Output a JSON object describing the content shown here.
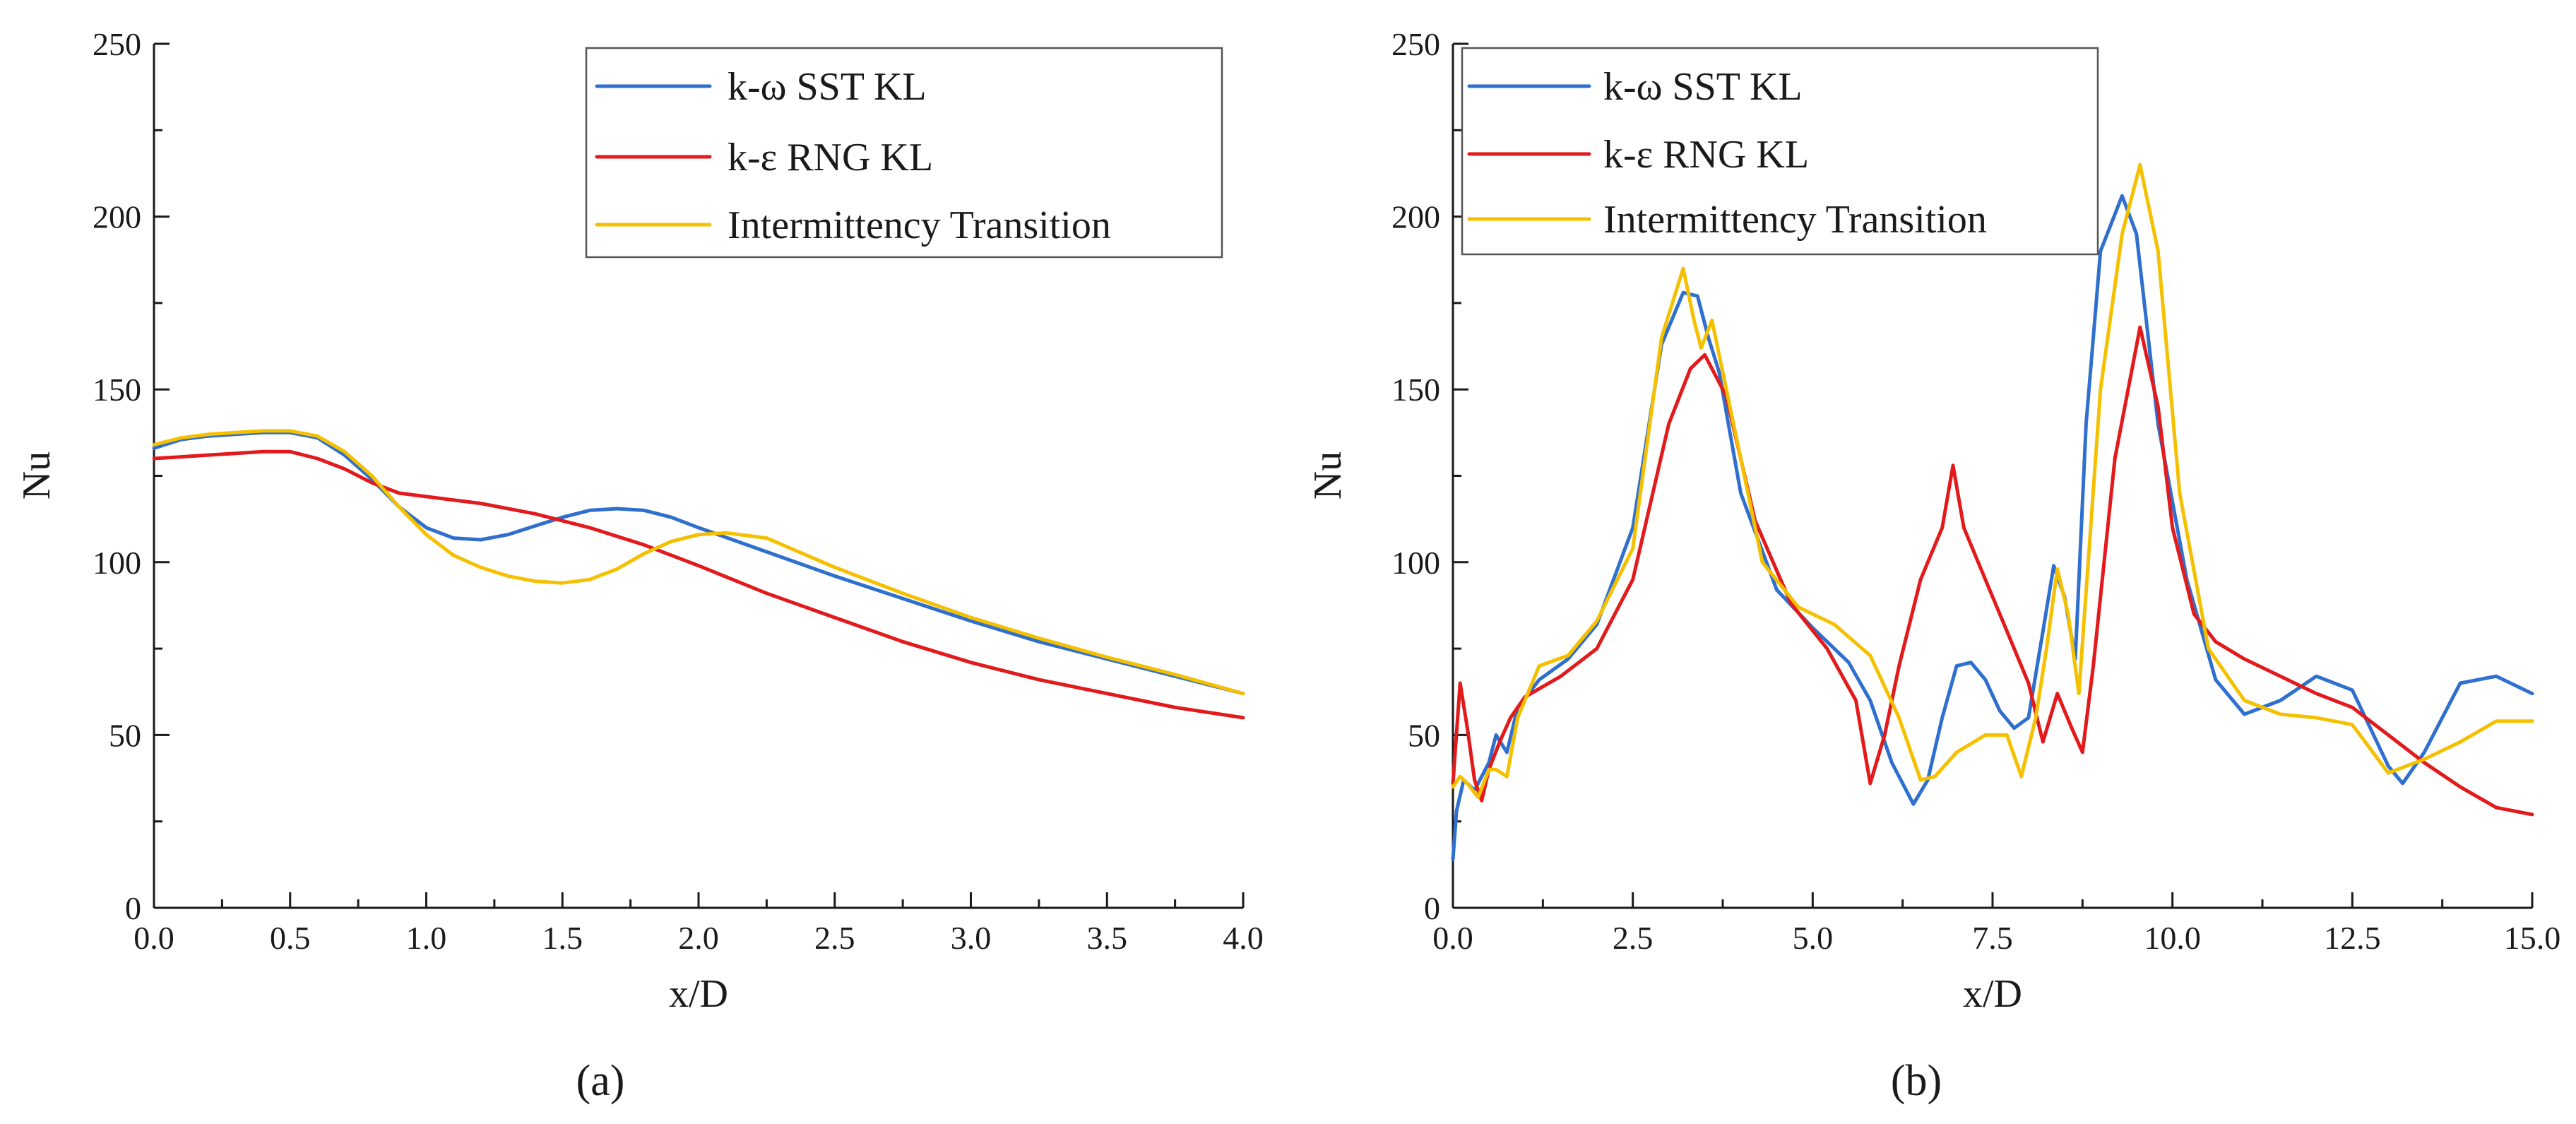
{
  "chart_data": [
    {
      "type": "line",
      "panel_label": "(a)",
      "xlabel": "x/D",
      "ylabel": "Nu",
      "xlim": [
        0,
        4
      ],
      "ylim": [
        0,
        250
      ],
      "x_ticks": [
        "0.0",
        "0.5",
        "1.0",
        "1.5",
        "2.0",
        "2.5",
        "3.0",
        "3.5",
        "4.0"
      ],
      "y_ticks": [
        "0",
        "50",
        "100",
        "150",
        "200",
        "250"
      ],
      "legend_position": "top-right",
      "series": [
        {
          "name": "k-ω SST KL",
          "color": "#2f6fce",
          "x": [
            0,
            0.1,
            0.2,
            0.3,
            0.4,
            0.5,
            0.6,
            0.7,
            0.8,
            0.9,
            1.0,
            1.1,
            1.2,
            1.3,
            1.4,
            1.5,
            1.6,
            1.7,
            1.8,
            1.9,
            2.0,
            2.25,
            2.5,
            2.75,
            3.0,
            3.25,
            3.5,
            3.75,
            4.0
          ],
          "y": [
            133,
            135.5,
            136.5,
            137,
            137.5,
            137.5,
            136,
            131,
            124,
            116,
            110,
            107,
            106.5,
            108,
            110.5,
            113,
            115,
            115.5,
            115,
            113,
            110,
            103,
            96,
            89.5,
            83,
            77,
            72,
            67,
            62
          ]
        },
        {
          "name": "k-ε RNG KL",
          "color": "#e31a1c",
          "x": [
            0,
            0.1,
            0.2,
            0.3,
            0.4,
            0.5,
            0.6,
            0.7,
            0.8,
            0.9,
            1.0,
            1.2,
            1.4,
            1.6,
            1.8,
            2.0,
            2.25,
            2.5,
            2.75,
            3.0,
            3.25,
            3.5,
            3.75,
            4.0
          ],
          "y": [
            130,
            130.5,
            131,
            131.5,
            132,
            132,
            130,
            127,
            123,
            120,
            119,
            117,
            114,
            110,
            105,
            99,
            91,
            84,
            77,
            71,
            66,
            62,
            58,
            55
          ]
        },
        {
          "name": "Intermittency Transition",
          "color": "#f5c000",
          "x": [
            0,
            0.1,
            0.2,
            0.3,
            0.4,
            0.5,
            0.6,
            0.7,
            0.8,
            0.9,
            1.0,
            1.1,
            1.2,
            1.3,
            1.4,
            1.5,
            1.6,
            1.7,
            1.8,
            1.9,
            2.0,
            2.1,
            2.25,
            2.5,
            2.75,
            3.0,
            3.25,
            3.5,
            3.75,
            4.0
          ],
          "y": [
            134,
            136,
            137,
            137.5,
            138,
            138,
            136.5,
            132,
            125,
            116,
            108,
            102,
            98.5,
            96,
            94.5,
            94,
            95,
            98,
            102.5,
            106,
            108,
            108.5,
            107,
            98.5,
            91,
            84,
            78,
            72.5,
            67.5,
            62
          ]
        }
      ]
    },
    {
      "type": "line",
      "panel_label": "(b)",
      "xlabel": "x/D",
      "ylabel": "Nu",
      "xlim": [
        0,
        15
      ],
      "ylim": [
        0,
        250
      ],
      "x_ticks": [
        "0.0",
        "2.5",
        "5.0",
        "7.5",
        "10.0",
        "12.5",
        "15.0"
      ],
      "y_ticks": [
        "0",
        "50",
        "100",
        "150",
        "200",
        "250"
      ],
      "legend_position": "top-left",
      "series": [
        {
          "name": "k-ω SST KL",
          "color": "#2f6fce",
          "x": [
            0,
            0.05,
            0.15,
            0.3,
            0.5,
            0.6,
            0.75,
            0.9,
            1.2,
            1.6,
            2.0,
            2.5,
            2.9,
            3.2,
            3.4,
            3.55,
            3.7,
            4.0,
            4.5,
            5.0,
            5.5,
            5.8,
            6.1,
            6.4,
            6.6,
            6.8,
            7.0,
            7.2,
            7.4,
            7.6,
            7.8,
            8.0,
            8.2,
            8.35,
            8.5,
            8.65,
            8.8,
            9.0,
            9.3,
            9.5,
            9.8,
            10.2,
            10.6,
            11.0,
            11.5,
            12.0,
            12.5,
            13.0,
            13.2,
            13.5,
            14.0,
            14.5,
            15.0
          ],
          "y": [
            14,
            28,
            37,
            34,
            42,
            50,
            45,
            58,
            66,
            72,
            82,
            110,
            163,
            178,
            177,
            165,
            155,
            120,
            92,
            81,
            71,
            60,
            42,
            30,
            37,
            55,
            70,
            71,
            66,
            57,
            52,
            55,
            80,
            99,
            90,
            72,
            140,
            190,
            206,
            195,
            140,
            95,
            66,
            56,
            60,
            67,
            63,
            41,
            36,
            45,
            65,
            67,
            62
          ]
        },
        {
          "name": "k-ε RNG KL",
          "color": "#e31a1c",
          "x": [
            0,
            0.1,
            0.2,
            0.3,
            0.4,
            0.5,
            0.65,
            0.8,
            1.0,
            1.5,
            2.0,
            2.5,
            3.0,
            3.3,
            3.5,
            3.8,
            4.2,
            4.7,
            5.2,
            5.6,
            5.8,
            6.0,
            6.2,
            6.5,
            6.8,
            6.95,
            7.1,
            7.4,
            7.7,
            8.0,
            8.2,
            8.4,
            8.6,
            8.75,
            8.9,
            9.2,
            9.55,
            9.8,
            10.0,
            10.3,
            10.6,
            11.0,
            11.5,
            12.0,
            12.5,
            13.0,
            13.5,
            14.0,
            14.5,
            15.0
          ],
          "y": [
            36,
            65,
            52,
            37,
            31,
            40,
            48,
            55,
            61,
            67,
            75,
            95,
            140,
            156,
            160,
            148,
            112,
            88,
            75,
            60,
            36,
            50,
            70,
            95,
            110,
            128,
            110,
            95,
            80,
            65,
            48,
            62,
            52,
            45,
            70,
            130,
            168,
            145,
            110,
            85,
            77,
            72,
            67,
            62,
            58,
            50,
            42,
            35,
            29,
            27
          ]
        },
        {
          "name": "Intermittency Transition",
          "color": "#f5c000",
          "x": [
            0,
            0.1,
            0.2,
            0.35,
            0.5,
            0.6,
            0.75,
            0.9,
            1.2,
            1.6,
            2.0,
            2.5,
            2.9,
            3.2,
            3.35,
            3.45,
            3.6,
            3.9,
            4.3,
            4.8,
            5.3,
            5.8,
            6.2,
            6.5,
            6.7,
            7.0,
            7.4,
            7.7,
            7.9,
            8.1,
            8.25,
            8.4,
            8.55,
            8.7,
            9.0,
            9.3,
            9.55,
            9.8,
            10.1,
            10.5,
            11.0,
            11.5,
            12.0,
            12.5,
            13.0,
            13.5,
            14.0,
            14.5,
            15.0
          ],
          "y": [
            35,
            38,
            36,
            32,
            40,
            40,
            38,
            55,
            70,
            73,
            83,
            104,
            165,
            185,
            170,
            162,
            170,
            140,
            100,
            87,
            82,
            73,
            55,
            37,
            38,
            45,
            50,
            50,
            38,
            55,
            75,
            98,
            85,
            62,
            150,
            195,
            215,
            190,
            120,
            75,
            60,
            56,
            55,
            53,
            39,
            43,
            48,
            54,
            54
          ]
        }
      ]
    }
  ]
}
